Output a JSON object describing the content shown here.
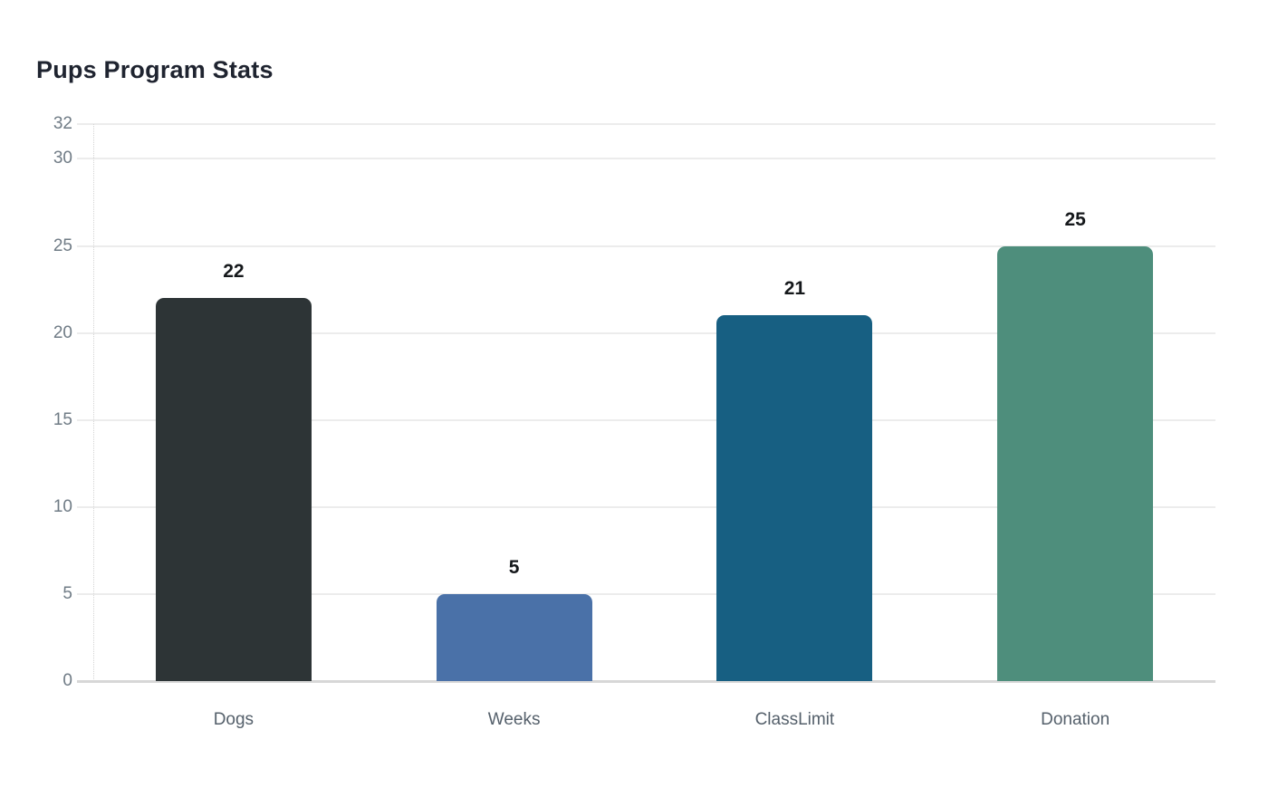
{
  "title": "Pups Program Stats",
  "chart_data": {
    "type": "bar",
    "title": "Pups Program Stats",
    "categories": [
      "Dogs",
      "Weeks",
      "ClassLimit",
      "Donation"
    ],
    "values": [
      22,
      5,
      21,
      25
    ],
    "value_labels": [
      "22",
      "5",
      "21",
      "25"
    ],
    "bar_colors": [
      "#2d3436",
      "#4a71a8",
      "#175f82",
      "#4e8e7c"
    ],
    "xlabel": "",
    "ylabel": "",
    "yticks": [
      0,
      5,
      10,
      15,
      20,
      25,
      30,
      32
    ],
    "ylim": [
      0,
      32
    ],
    "grid": true,
    "legend": false,
    "value_labels_shown": true
  },
  "colors": {
    "background": "#ffffff",
    "title": "#1f2430",
    "grid": "#ececec",
    "axis_line": "#d7d7d7",
    "y_axis_dotted": "#d4d4d4",
    "tick_label": "#6f7b85",
    "x_label": "#55606b",
    "value_label": "#15181b"
  }
}
